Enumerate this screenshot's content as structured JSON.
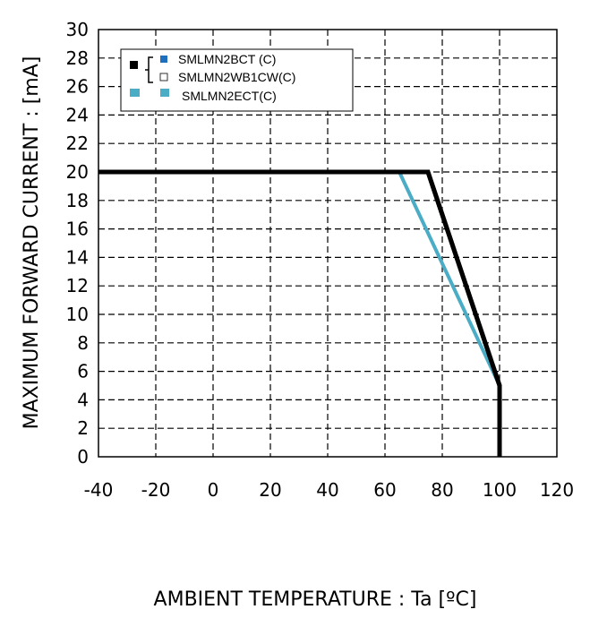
{
  "chart_data": {
    "type": "line",
    "xlabel": "AMBIENT TEMPERATURE : Ta [ºC]",
    "ylabel": "MAXIMUM FORWARD CURRENT :  [mA]",
    "xlim": [
      -40,
      120
    ],
    "ylim": [
      0,
      30
    ],
    "xticks": [
      -40,
      -20,
      0,
      20,
      40,
      60,
      80,
      100,
      120
    ],
    "yticks": [
      0,
      2,
      4,
      6,
      8,
      10,
      12,
      14,
      16,
      18,
      20,
      22,
      24,
      26,
      28,
      30
    ],
    "grid": true,
    "legend_position": "top-left",
    "series": [
      {
        "name": "SMLMN2BCT (C)",
        "color": "#000000",
        "marker_color": "#1f6fbf",
        "points": [
          [
            -40,
            20
          ],
          [
            75,
            20
          ],
          [
            100,
            5
          ],
          [
            100,
            0
          ]
        ]
      },
      {
        "name": "SMLMN2WB1CW(C)",
        "color": "#000000",
        "marker_color": "#ffffff",
        "points": [
          [
            -40,
            20
          ],
          [
            75,
            20
          ],
          [
            100,
            5
          ],
          [
            100,
            0
          ]
        ]
      },
      {
        "name": "SMLMN2ECT(C)",
        "color": "#4bacc6",
        "marker_color": "#4bacc6",
        "points": [
          [
            -40,
            20
          ],
          [
            65,
            20
          ],
          [
            100,
            5
          ]
        ]
      }
    ]
  }
}
